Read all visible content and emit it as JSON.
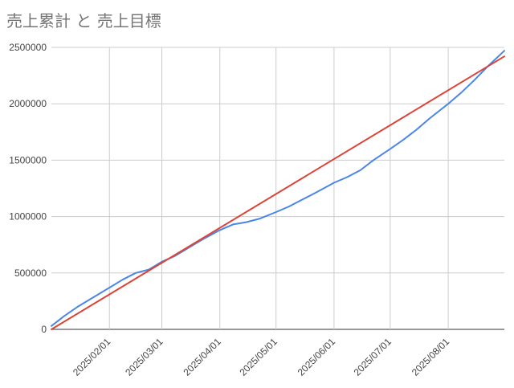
{
  "chart_data": {
    "type": "line",
    "title": "売上累計 と 売上目標",
    "xlabel": "",
    "ylabel": "",
    "x_start": "2025/01/01",
    "x_end": "2025/08/31",
    "ylim": [
      0,
      2500000
    ],
    "y_ticks": [
      "0",
      "500000",
      "1000000",
      "1500000",
      "2000000",
      "2500000"
    ],
    "x_ticks": [
      "2025/02/01",
      "2025/03/01",
      "2025/04/01",
      "2025/05/01",
      "2025/06/01",
      "2025/07/01",
      "2025/08/01"
    ],
    "grid": true,
    "legend": "none",
    "series": [
      {
        "color": "#4a86e8",
        "points": [
          [
            "2025/01/01",
            30000
          ],
          [
            "2025/01/08",
            120000
          ],
          [
            "2025/01/15",
            200000
          ],
          [
            "2025/01/22",
            270000
          ],
          [
            "2025/02/01",
            370000
          ],
          [
            "2025/02/08",
            440000
          ],
          [
            "2025/02/15",
            500000
          ],
          [
            "2025/02/22",
            530000
          ],
          [
            "2025/03/01",
            600000
          ],
          [
            "2025/03/08",
            650000
          ],
          [
            "2025/03/15",
            720000
          ],
          [
            "2025/03/22",
            790000
          ],
          [
            "2025/04/01",
            880000
          ],
          [
            "2025/04/08",
            930000
          ],
          [
            "2025/04/15",
            950000
          ],
          [
            "2025/04/22",
            980000
          ],
          [
            "2025/05/01",
            1040000
          ],
          [
            "2025/05/08",
            1090000
          ],
          [
            "2025/05/15",
            1150000
          ],
          [
            "2025/05/22",
            1210000
          ],
          [
            "2025/06/01",
            1300000
          ],
          [
            "2025/06/08",
            1350000
          ],
          [
            "2025/06/15",
            1410000
          ],
          [
            "2025/06/22",
            1500000
          ],
          [
            "2025/07/01",
            1600000
          ],
          [
            "2025/07/08",
            1680000
          ],
          [
            "2025/07/15",
            1770000
          ],
          [
            "2025/07/22",
            1870000
          ],
          [
            "2025/08/01",
            2000000
          ],
          [
            "2025/08/08",
            2100000
          ],
          [
            "2025/08/15",
            2210000
          ],
          [
            "2025/08/22",
            2330000
          ],
          [
            "2025/08/31",
            2470000
          ]
        ]
      },
      {
        "color": "#db4437",
        "points": [
          [
            "2025/01/01",
            0
          ],
          [
            "2025/08/31",
            2420000
          ]
        ]
      }
    ]
  }
}
